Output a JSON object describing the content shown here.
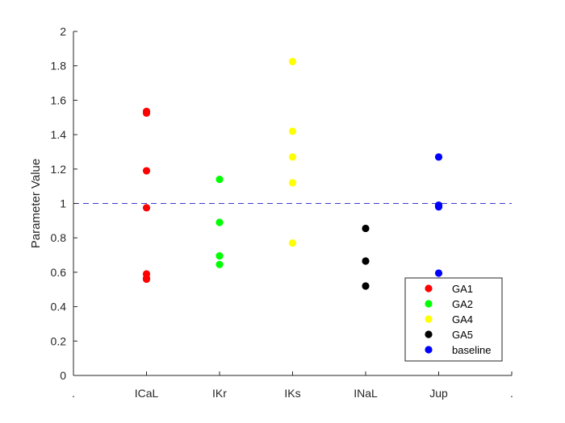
{
  "chart_data": {
    "type": "scatter",
    "title": "",
    "xlabel": "",
    "ylabel": "Parameter Value",
    "x_tick_labels": [
      ".",
      "ICaL",
      "IKr",
      "IKs",
      "INaL",
      "Jup",
      "."
    ],
    "xlim": [
      0,
      6
    ],
    "ylim": [
      0,
      2
    ],
    "y_ticks": [
      0,
      0.2,
      0.4,
      0.6,
      0.8,
      1,
      1.2,
      1.4,
      1.6,
      1.8,
      2
    ],
    "y_tick_labels": [
      "0",
      "0.2",
      "0.4",
      "0.6",
      "0.8",
      "1",
      "1.2",
      "1.4",
      "1.6",
      "1.8",
      "2"
    ],
    "reference_line": {
      "y": 1,
      "style": "dashed",
      "color": "#3c3ccf"
    },
    "grid": false,
    "legend_position": "bottom-right",
    "series": [
      {
        "name": "GA1",
        "color": "#ff0000",
        "x": [
          1,
          1,
          1,
          1,
          1,
          1,
          1
        ],
        "y": [
          1.535,
          1.525,
          1.19,
          0.975,
          0.59,
          0.565,
          0.56
        ]
      },
      {
        "name": "GA2",
        "color": "#00ff00",
        "x": [
          2,
          2,
          2,
          2
        ],
        "y": [
          1.14,
          0.89,
          0.695,
          0.645
        ]
      },
      {
        "name": "GA4",
        "color": "#ffff00",
        "x": [
          3,
          3,
          3,
          3,
          3
        ],
        "y": [
          1.825,
          1.42,
          1.27,
          1.12,
          0.77
        ]
      },
      {
        "name": "GA5",
        "color": "#000000",
        "x": [
          4,
          4,
          4
        ],
        "y": [
          0.855,
          0.665,
          0.52
        ]
      },
      {
        "name": "baseline",
        "color": "#0000ff",
        "x": [
          5,
          5,
          5,
          5
        ],
        "y": [
          1.27,
          0.99,
          0.98,
          0.595
        ]
      }
    ]
  }
}
